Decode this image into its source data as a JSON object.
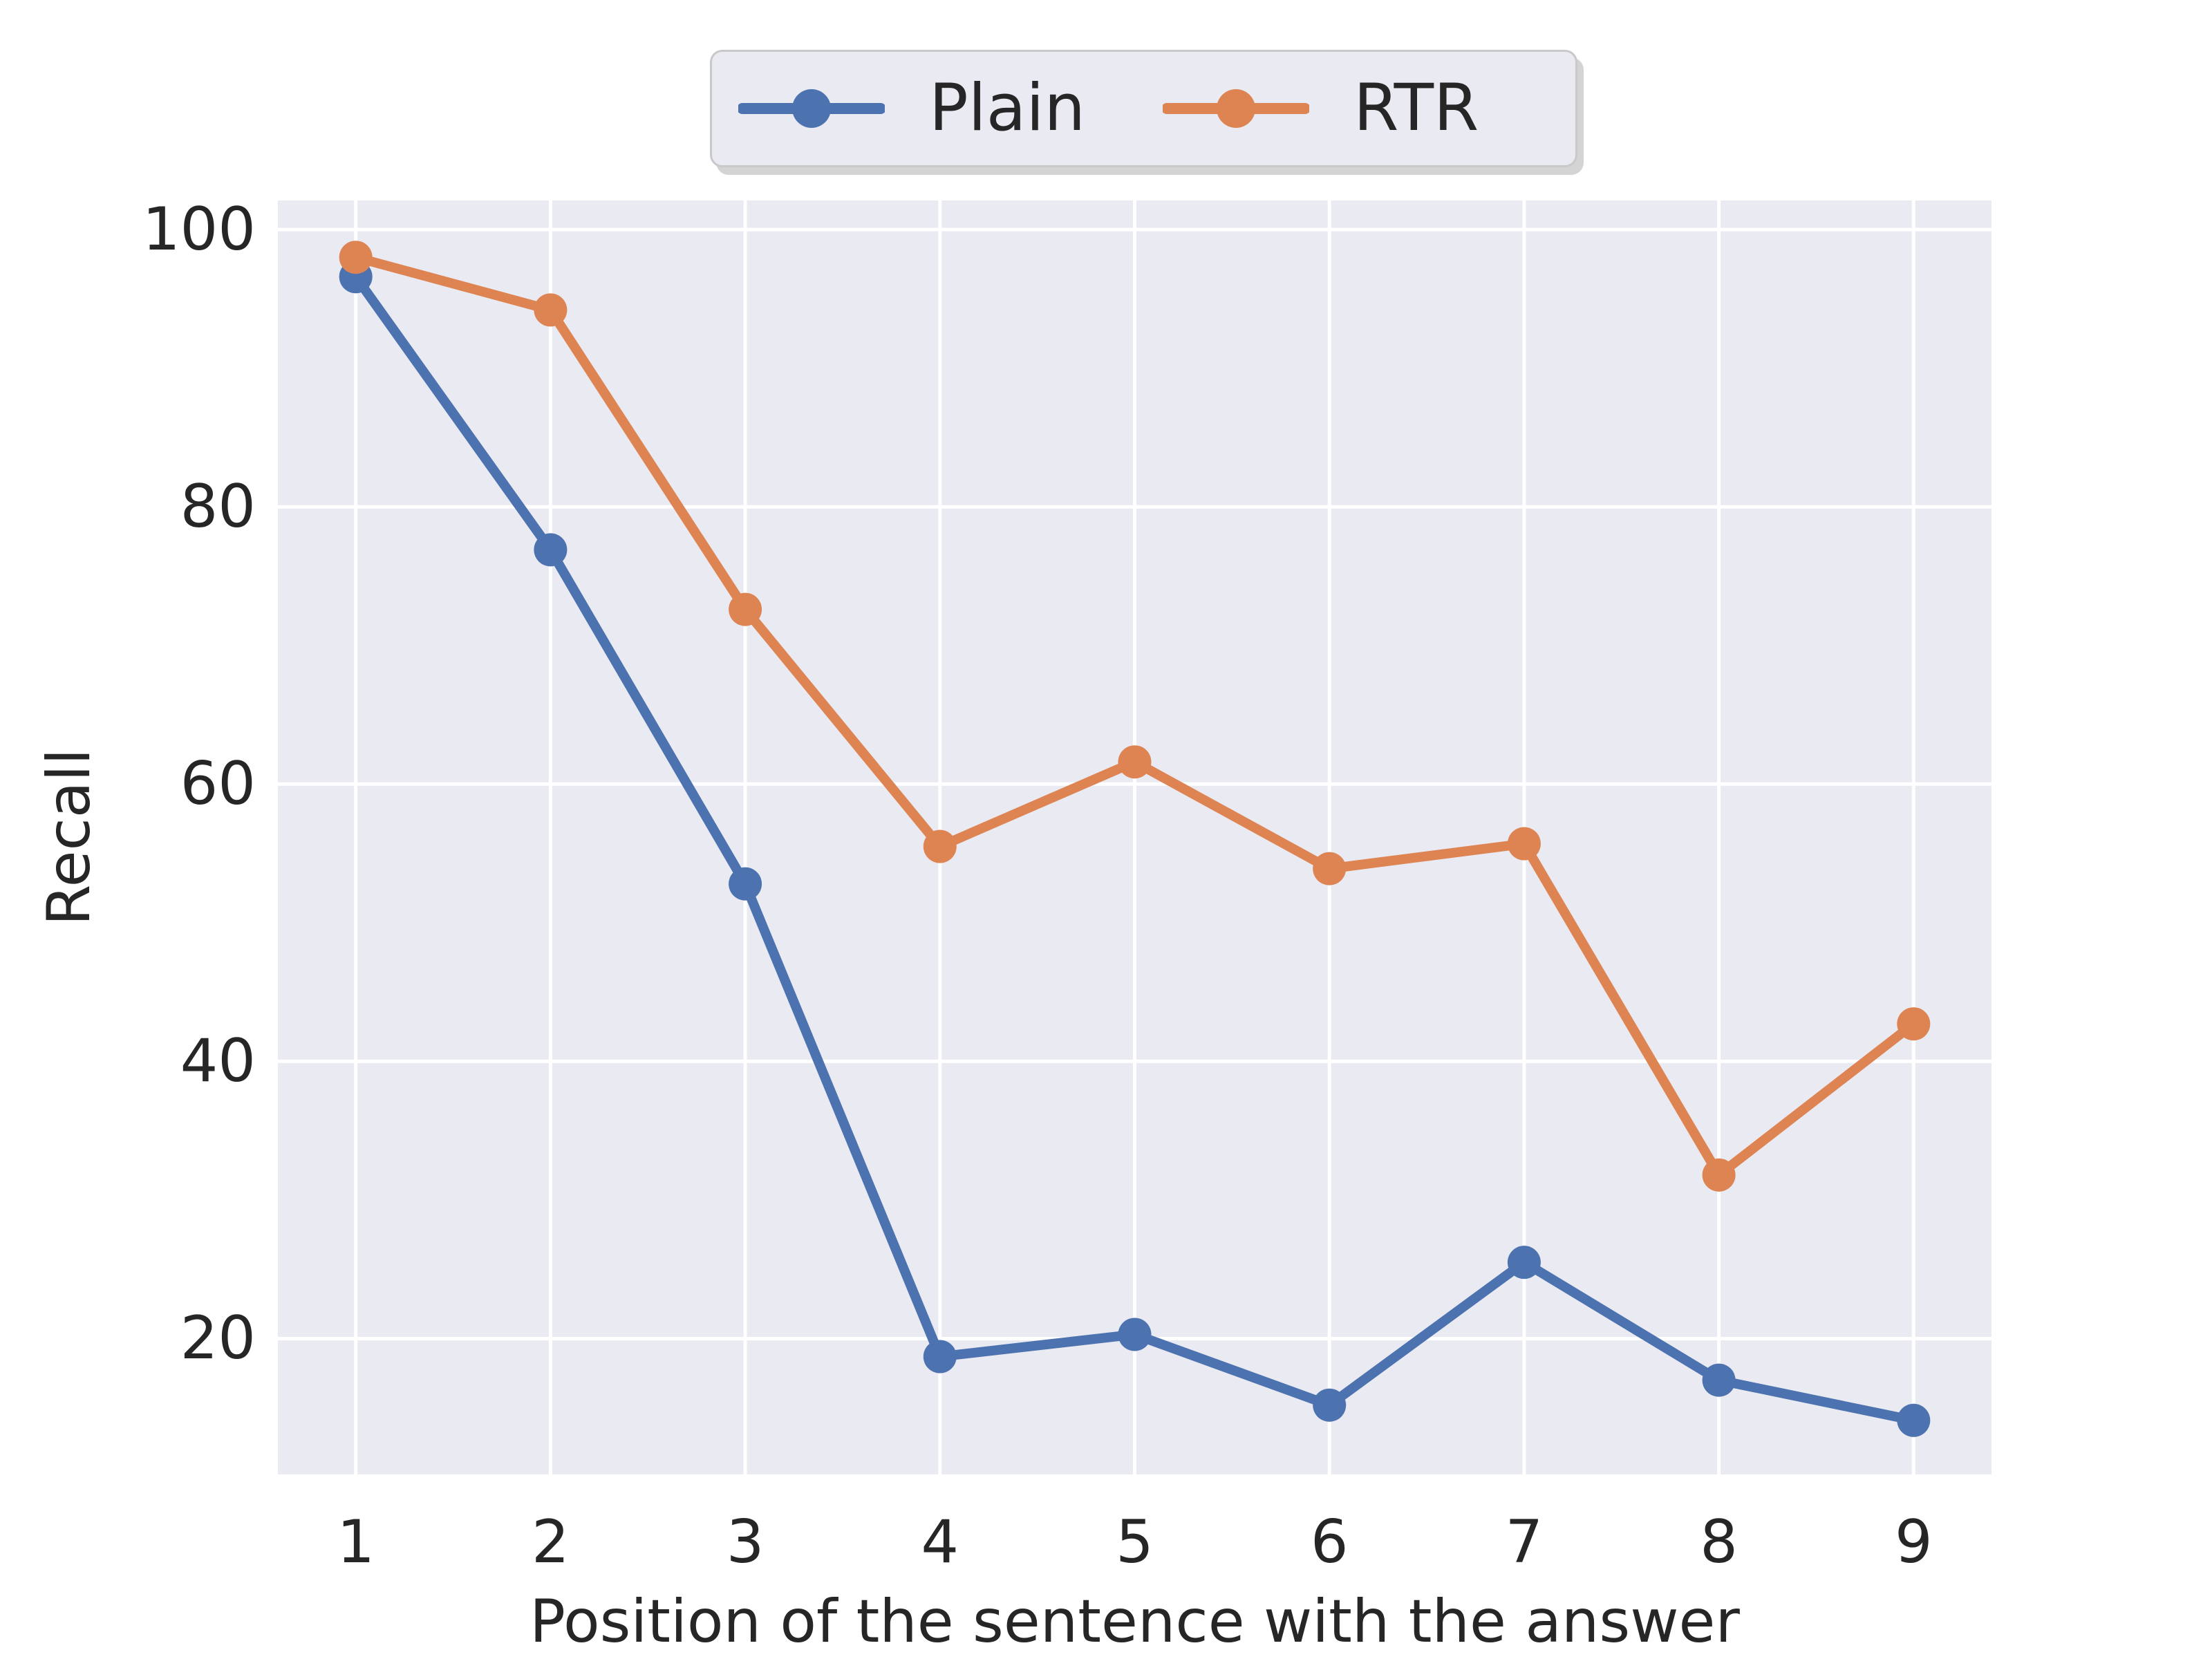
{
  "chart_data": {
    "type": "line",
    "title": "",
    "xlabel": "Position of the sentence with the answer",
    "ylabel": "Recall",
    "x": [
      1,
      2,
      3,
      4,
      5,
      6,
      7,
      8,
      9
    ],
    "x_ticks": [
      1,
      2,
      3,
      4,
      5,
      6,
      7,
      8,
      9
    ],
    "y_ticks": [
      20,
      40,
      60,
      80,
      100
    ],
    "xlim": [
      0.6,
      9.4
    ],
    "ylim": [
      10.2,
      102.1
    ],
    "grid": true,
    "legend_position": "upper center",
    "plot_bg_color": "#EAEAF2",
    "grid_color": "#FFFFFF",
    "text_color": "#262626",
    "series": [
      {
        "name": "Plain",
        "color": "#4C72B0",
        "values": [
          96.6,
          76.9,
          52.8,
          18.7,
          20.3,
          15.2,
          25.5,
          17.0,
          14.1
        ]
      },
      {
        "name": "RTR",
        "color": "#DD8452",
        "values": [
          98.0,
          94.2,
          72.6,
          55.5,
          61.6,
          53.9,
          55.7,
          31.8,
          42.7
        ]
      }
    ]
  }
}
